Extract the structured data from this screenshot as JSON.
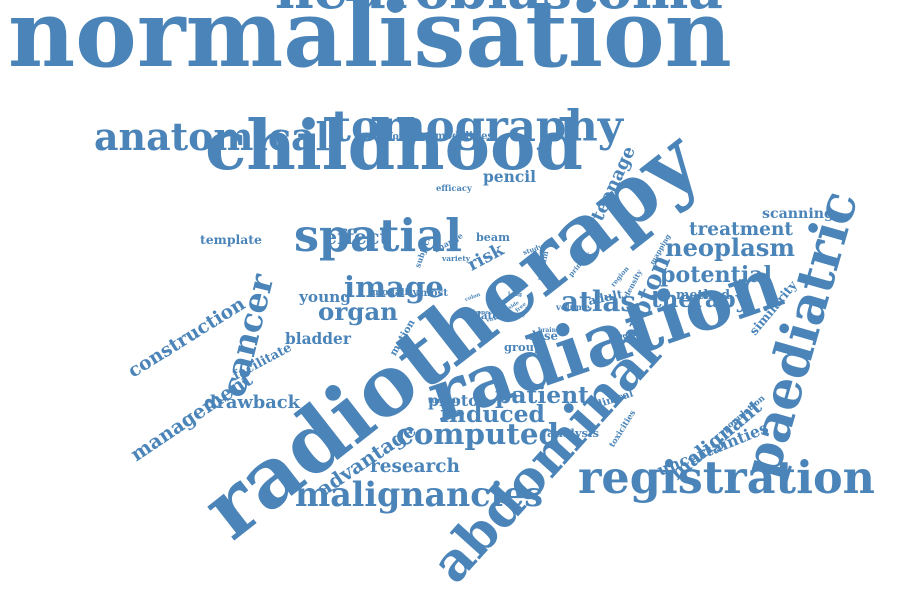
{
  "word_color": "#4a84b8",
  "words": [
    {
      "text": "normalisation"
    },
    {
      "text": "radiotherapy"
    },
    {
      "text": "radiation"
    },
    {
      "text": "neuroblastoma"
    },
    {
      "text": "childhood"
    },
    {
      "text": "abdominal"
    },
    {
      "text": "paediatric"
    },
    {
      "text": "registration"
    },
    {
      "text": "anatomical"
    },
    {
      "text": "tomography"
    },
    {
      "text": "spatial"
    },
    {
      "text": "malignancies"
    },
    {
      "text": "cancer"
    },
    {
      "text": "image"
    },
    {
      "text": "computed"
    },
    {
      "text": "atlas"
    },
    {
      "text": "therapy"
    },
    {
      "text": "neoplasm"
    },
    {
      "text": "potential"
    },
    {
      "text": "proton"
    },
    {
      "text": "construction"
    },
    {
      "text": "management"
    },
    {
      "text": "malignant"
    },
    {
      "text": "organ"
    },
    {
      "text": "induced"
    },
    {
      "text": "patient"
    },
    {
      "text": "advantage"
    },
    {
      "text": "research"
    },
    {
      "text": "effect"
    },
    {
      "text": "young"
    },
    {
      "text": "bladder"
    },
    {
      "text": "drawback"
    },
    {
      "text": "photon"
    },
    {
      "text": "treatment"
    },
    {
      "text": "teenage"
    },
    {
      "text": "scanning"
    },
    {
      "text": "similarity"
    },
    {
      "text": "template"
    },
    {
      "text": "uncertainties"
    },
    {
      "text": "pencil"
    },
    {
      "text": "risk"
    },
    {
      "text": "beam"
    },
    {
      "text": "dose"
    },
    {
      "text": "group"
    },
    {
      "text": "method"
    },
    {
      "text": "adult"
    },
    {
      "text": "facilitate"
    },
    {
      "text": "motion"
    },
    {
      "text": "late"
    },
    {
      "text": "deformable"
    },
    {
      "text": "modalities"
    },
    {
      "text": "efficacy"
    },
    {
      "text": "modality"
    },
    {
      "text": "most"
    },
    {
      "text": "analysis"
    },
    {
      "text": "clinical"
    },
    {
      "text": "toxicities"
    },
    {
      "text": "population"
    },
    {
      "text": "tumour"
    },
    {
      "text": "volume"
    },
    {
      "text": "benefit"
    },
    {
      "text": "brain"
    },
    {
      "text": "primary"
    },
    {
      "text": "mapping"
    },
    {
      "text": "density"
    },
    {
      "text": "change"
    },
    {
      "text": "subject"
    },
    {
      "text": "study"
    },
    {
      "text": "rectum"
    },
    {
      "text": "variety"
    },
    {
      "text": "region"
    },
    {
      "text": "colon"
    },
    {
      "text": "bone"
    },
    {
      "text": "voxel"
    },
    {
      "text": "long"
    },
    {
      "text": "free"
    },
    {
      "text": "glide"
    },
    {
      "text": "side"
    }
  ]
}
